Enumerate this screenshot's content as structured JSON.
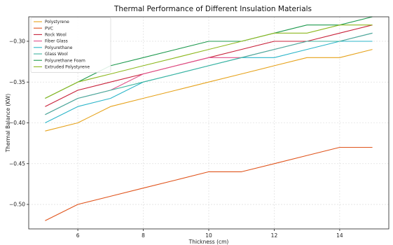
{
  "chart_data": {
    "type": "line",
    "title": "Thermal Performance of Different Insulation Materials",
    "xlabel": "Thickness (cm)",
    "ylabel": "Thermal Balance (KW)",
    "xlim": [
      4.5,
      15.5
    ],
    "ylim": [
      -0.53,
      -0.27
    ],
    "xticks": [
      6,
      8,
      10,
      12,
      14
    ],
    "yticks": [
      -0.5,
      -0.45,
      -0.4,
      -0.35,
      -0.3
    ],
    "ytick_labels": [
      "−0.50",
      "−0.45",
      "−0.40",
      "−0.35",
      "−0.30"
    ],
    "grid": true,
    "legend_position": "top-left",
    "x": [
      5,
      6,
      7,
      8,
      9,
      10,
      11,
      12,
      13,
      14,
      15
    ],
    "series": [
      {
        "name": "Polystyrene",
        "color": "#e6a21a",
        "values": [
          -0.41,
          -0.4,
          -0.38,
          -0.37,
          -0.36,
          -0.35,
          -0.34,
          -0.33,
          -0.32,
          -0.32,
          -0.31
        ]
      },
      {
        "name": "PVC",
        "color": "#e0541c",
        "values": [
          -0.52,
          -0.5,
          -0.49,
          -0.48,
          -0.47,
          -0.46,
          -0.46,
          -0.45,
          -0.44,
          -0.43,
          -0.43
        ]
      },
      {
        "name": "Rock Wool",
        "color": "#c8213a",
        "values": [
          -0.38,
          -0.36,
          -0.35,
          -0.34,
          -0.33,
          -0.32,
          -0.31,
          -0.3,
          -0.3,
          -0.29,
          -0.28
        ]
      },
      {
        "name": "Fiber Glass",
        "color": "#e0508a",
        "values": [
          -0.39,
          -0.37,
          -0.36,
          -0.34,
          -0.33,
          -0.32,
          -0.32,
          -0.31,
          -0.3,
          -0.3,
          -0.29
        ]
      },
      {
        "name": "Polyurethane",
        "color": "#2bb5c9",
        "values": [
          -0.4,
          -0.38,
          -0.37,
          -0.35,
          -0.34,
          -0.33,
          -0.32,
          -0.32,
          -0.31,
          -0.3,
          -0.3
        ]
      },
      {
        "name": "Glass Wool",
        "color": "#3fb5a0",
        "values": [
          -0.39,
          -0.37,
          -0.36,
          -0.35,
          -0.34,
          -0.33,
          -0.32,
          -0.31,
          -0.3,
          -0.3,
          -0.29
        ]
      },
      {
        "name": "Polyurethane Foam",
        "color": "#1e9a4f",
        "values": [
          -0.37,
          -0.35,
          -0.33,
          -0.32,
          -0.31,
          -0.3,
          -0.3,
          -0.29,
          -0.28,
          -0.28,
          -0.27
        ]
      },
      {
        "name": "Extruded Polystyrene",
        "color": "#8db81e",
        "values": [
          -0.37,
          -0.35,
          -0.34,
          -0.33,
          -0.32,
          -0.31,
          -0.3,
          -0.29,
          -0.29,
          -0.28,
          -0.28
        ]
      }
    ]
  }
}
